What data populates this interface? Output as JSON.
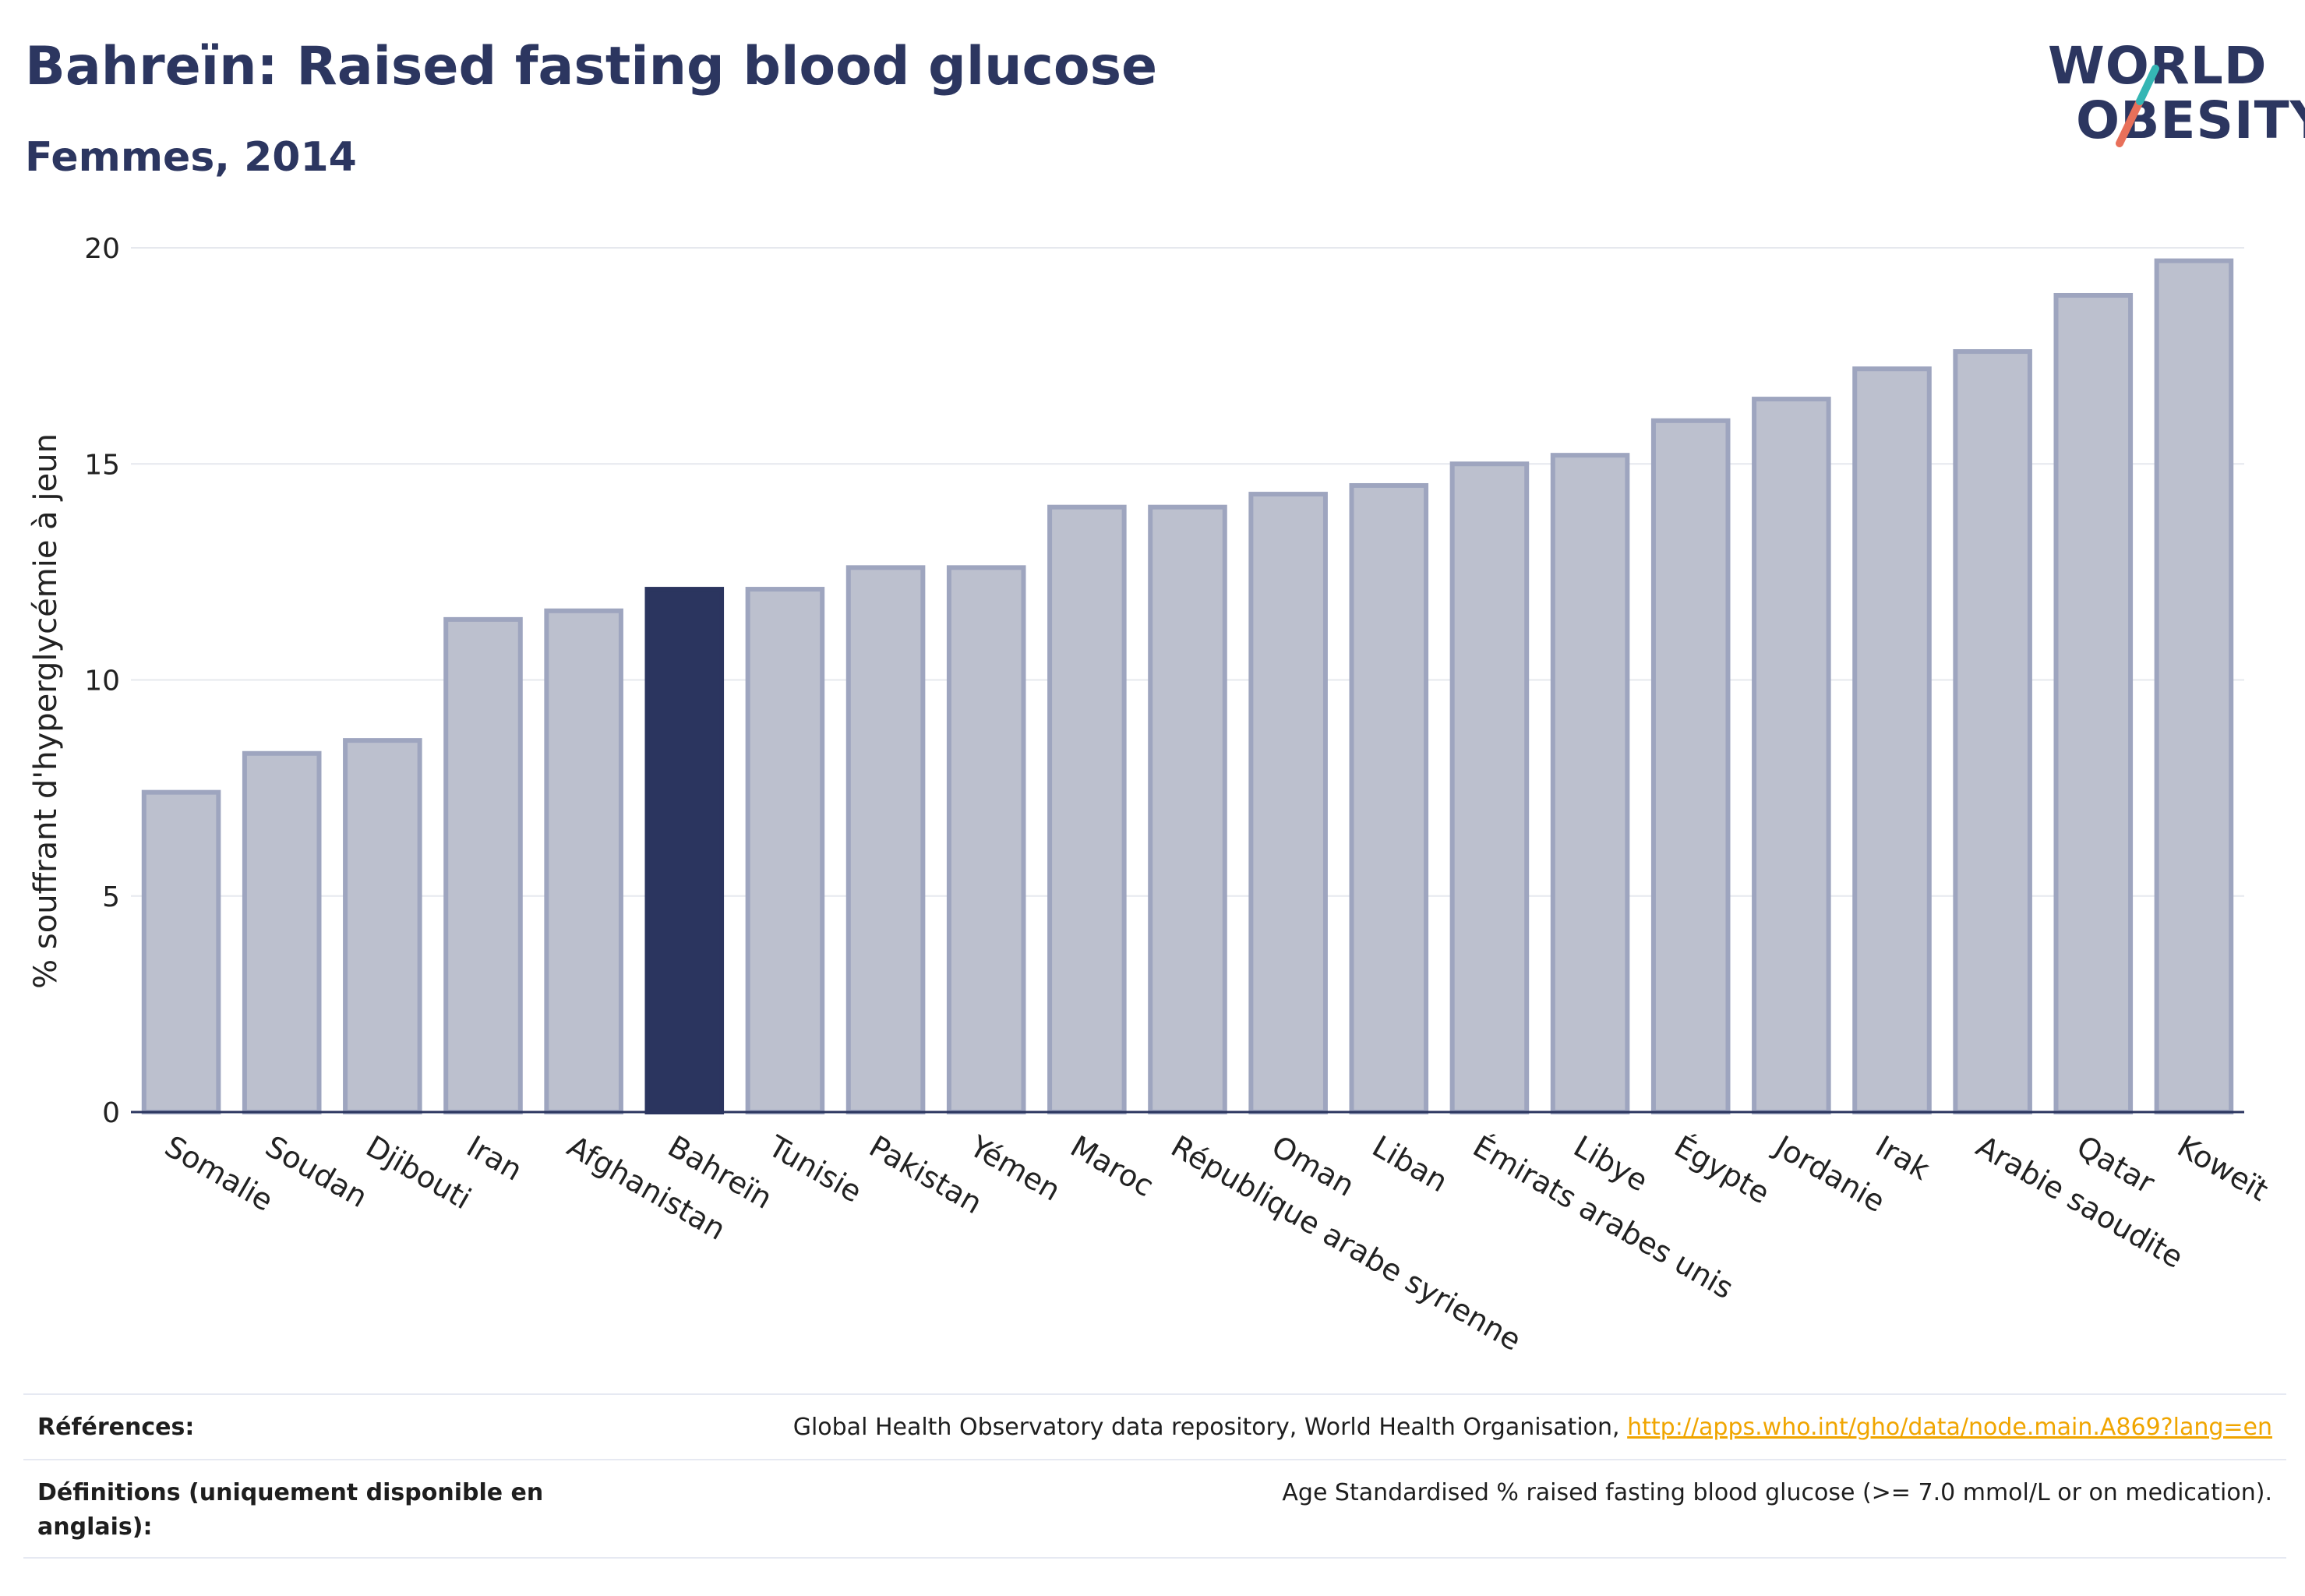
{
  "header": {
    "title": "Bahreïn: Raised fasting blood glucose",
    "subtitle": "Femmes, 2014"
  },
  "logo": {
    "line1": "WORLD",
    "line2": "OBESITY"
  },
  "colors": {
    "highlight": "#2b355f",
    "bar_fill": "#bcc0ce",
    "bar_stroke": "#9ea5bf",
    "axis": "#2b355f",
    "grid": "#e6e8ee",
    "logo_teal": "#35b6b4",
    "logo_coral": "#e8705a",
    "link": "#f0a500"
  },
  "chart_data": {
    "type": "bar",
    "categories": [
      "Somalie",
      "Soudan",
      "Djibouti",
      "Iran",
      "Afghanistan",
      "Bahreïn",
      "Tunisie",
      "Pakistan",
      "Yémen",
      "Maroc",
      "République arabe syrienne",
      "Oman",
      "Liban",
      "Émirats arabes unis",
      "Libye",
      "Égypte",
      "Jordanie",
      "Irak",
      "Arabie saoudite",
      "Qatar",
      "Koweït"
    ],
    "values": [
      7.4,
      8.3,
      8.6,
      11.4,
      11.6,
      12.1,
      12.1,
      12.6,
      12.6,
      14.0,
      14.0,
      14.3,
      14.5,
      15.0,
      15.2,
      16.0,
      16.5,
      17.2,
      17.6,
      18.9,
      19.7
    ],
    "highlight": "Bahreïn",
    "ylabel": "% souffrant d'hyperglycémie à jeun",
    "xlabel": "",
    "ylim": [
      0,
      20
    ],
    "yticks": [
      0,
      5,
      10,
      15,
      20
    ],
    "grid": true
  },
  "footer": {
    "references_label": "Références:",
    "references_text": "Global Health Observatory data repository, World Health Organisation,",
    "references_link": "http://apps.who.int/gho/data/node.main.A869?lang=en",
    "definitions_label": "Définitions (uniquement disponible en anglais):",
    "definitions_text": "Age Standardised % raised fasting blood glucose (>= 7.0 mmol/L or on medication)."
  }
}
